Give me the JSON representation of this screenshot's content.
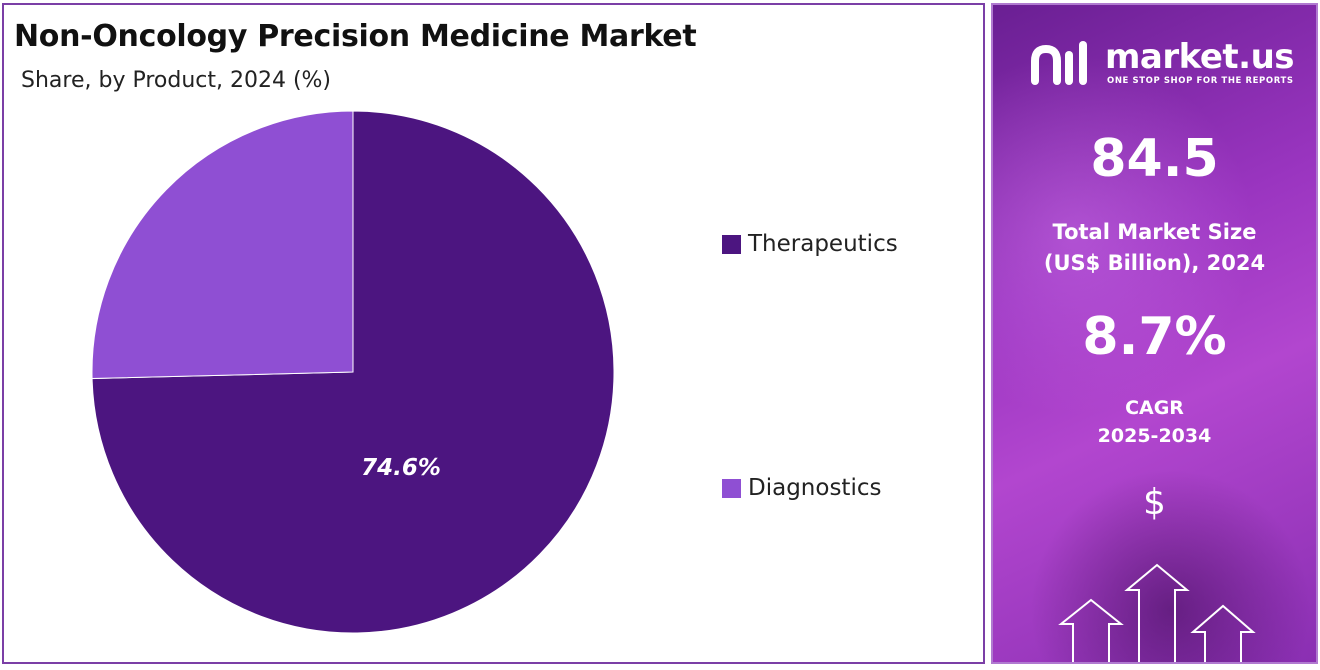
{
  "chart_data": {
    "type": "pie",
    "title": "Non-Oncology Precision Medicine Market",
    "subtitle": "Share, by Product, 2024 (%)",
    "slices": [
      {
        "label": "Therapeutics",
        "value": 74.6,
        "color": "#4c1580",
        "label_text": "74.6%"
      },
      {
        "label": "Diagnostics",
        "value": 25.4,
        "color": "#8f4fd3",
        "label_text": ""
      }
    ],
    "legend_position": "right"
  },
  "sidebar": {
    "brand": "market.us",
    "tagline": "ONE STOP SHOP FOR THE REPORTS",
    "market_size_value": "84.5",
    "market_size_label_line1": "Total Market Size",
    "market_size_label_line2": "(US$ Billion), 2024",
    "cagr_value": "8.7%",
    "cagr_label_line1": "CAGR",
    "cagr_label_line2": "2025-2034",
    "currency_symbol": "$"
  },
  "colors": {
    "border_accent": "#7b3fa6",
    "panel_gradient_start": "#6a1f93",
    "panel_gradient_end": "#b246cf"
  }
}
